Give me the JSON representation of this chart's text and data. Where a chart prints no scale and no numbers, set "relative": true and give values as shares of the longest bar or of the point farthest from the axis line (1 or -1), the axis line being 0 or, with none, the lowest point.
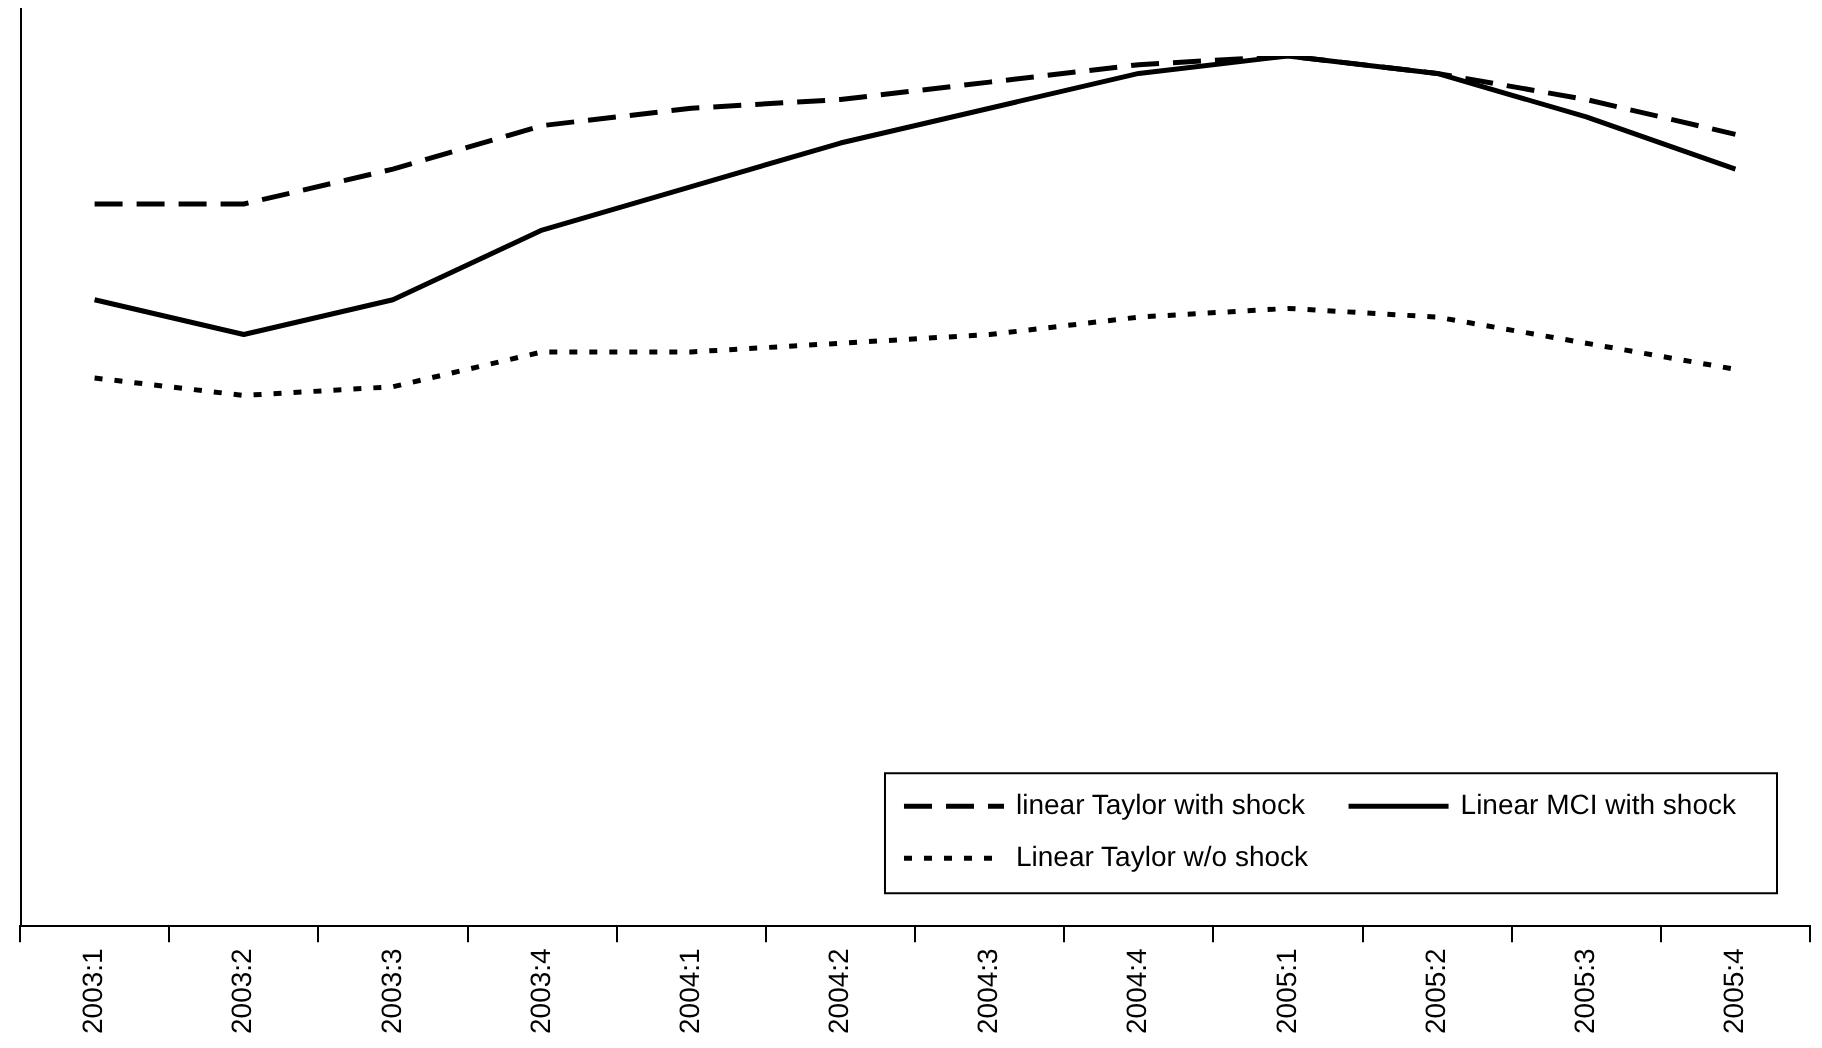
{
  "chart_data": {
    "type": "line",
    "relative": true,
    "marker": "none",
    "grid": false,
    "legend": "bottom right",
    "categories": [
      "2003:1",
      "2003:2",
      "2003:3",
      "2003:4",
      "2004:1",
      "2004:2",
      "2004:3",
      "2004:4",
      "2005:1",
      "2005:2",
      "2005:3",
      "2005:4"
    ],
    "series": [
      {
        "name": "linear Taylor with shock",
        "color": "#000000",
        "line_style": "dashed",
        "values": [
          0.83,
          0.83,
          0.87,
          0.92,
          0.94,
          0.95,
          0.97,
          0.99,
          1,
          0.98,
          0.95,
          0.91
        ]
      },
      {
        "name": "Linear MCI with shock",
        "color": "#000000",
        "line_style": "solid",
        "values": [
          0.72,
          0.68,
          0.72,
          0.8,
          0.85,
          0.9,
          0.94,
          0.98,
          1,
          0.98,
          0.93,
          0.87
        ]
      },
      {
        "name": "Linear Taylor w/o shock",
        "color": "#000000",
        "line_style": "dotted",
        "values": [
          0.63,
          0.61,
          0.62,
          0.66,
          0.66,
          0.67,
          0.68,
          0.7,
          0.71,
          0.7,
          0.67,
          0.64
        ]
      }
    ]
  }
}
